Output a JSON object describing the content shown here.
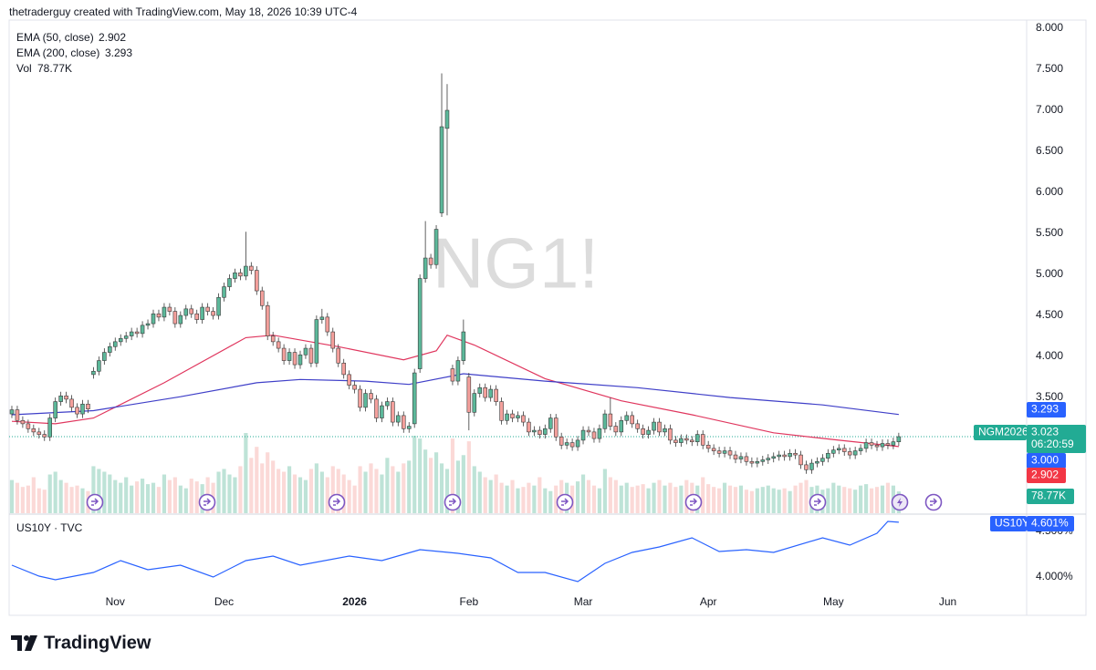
{
  "chart_data": {
    "type": "candlestick",
    "header": "thetraderguy created with TradingView.com, May 18, 2026 10:39 UTC-4",
    "title": "NG1!",
    "symbol": "NGM2026",
    "countdown": "06:20:59",
    "up_color": "#5cb89a",
    "down_color": "#f4a09c",
    "border_color": "#3a3a3a",
    "xlim": [
      -0.5,
      186
    ],
    "xticks": [
      {
        "value": 19,
        "label": "Nov"
      },
      {
        "value": 39,
        "label": "Dec"
      },
      {
        "value": 63,
        "label": "2026"
      },
      {
        "value": 84,
        "label": "Feb"
      },
      {
        "value": 105,
        "label": "Mar"
      },
      {
        "value": 128,
        "label": "Apr"
      },
      {
        "value": 151,
        "label": "May"
      },
      {
        "value": 172,
        "label": "Jun"
      }
    ],
    "ylim": [
      2.09,
      8.1
    ],
    "yticks": [
      {
        "value": 8,
        "label": "8.000"
      },
      {
        "value": 7.5,
        "label": "7.500"
      },
      {
        "value": 7,
        "label": "7.000"
      },
      {
        "value": 6.5,
        "label": "6.500"
      },
      {
        "value": 6,
        "label": "6.000"
      },
      {
        "value": 5.5,
        "label": "5.500"
      },
      {
        "value": 5,
        "label": "5.000"
      },
      {
        "value": 4.5,
        "label": "4.500"
      },
      {
        "value": 4,
        "label": "4.000"
      },
      {
        "value": 3.5,
        "label": "3.500"
      }
    ],
    "grid": false,
    "marker": {
      "value": 3,
      "label": "3.000",
      "color": "#2962ff"
    },
    "open": [
      3.3,
      3.35,
      3.22,
      3.18,
      3.12,
      3.08,
      3.05,
      3.02,
      3.25,
      3.45,
      3.52,
      3.48,
      3.38,
      3.3,
      3.42,
      3.78,
      3.82,
      3.95,
      4.05,
      4.12,
      4.18,
      4.22,
      4.25,
      4.3,
      4.28,
      4.38,
      4.4,
      4.52,
      4.48,
      4.6,
      4.55,
      4.4,
      4.5,
      4.58,
      4.52,
      4.45,
      4.6,
      4.55,
      4.5,
      4.72,
      4.85,
      4.95,
      5.02,
      4.98,
      5.1,
      5.05,
      4.8,
      4.62,
      4.25,
      4.18,
      4.1,
      3.95,
      4.05,
      3.9,
      4.02,
      4.1,
      3.92,
      4.45,
      4.48,
      4.3,
      4.1,
      3.92,
      3.78,
      3.65,
      3.6,
      3.38,
      3.55,
      3.48,
      3.25,
      3.4,
      3.45,
      3.2,
      3.28,
      3.12,
      3.18,
      3.85,
      4.95,
      5.2,
      5.12,
      5.75,
      6.78,
      3.85,
      3.7,
      3.95,
      3.75,
      3.32,
      3.55,
      3.62,
      3.5,
      3.6,
      3.45,
      3.22,
      3.3,
      3.25,
      3.28,
      3.2,
      3.08,
      3.1,
      3.05,
      3.12,
      3.25,
      3.02,
      2.92,
      2.95,
      2.9,
      2.98,
      3.1,
      3.08,
      3.0,
      3.12,
      3.3,
      3.15,
      3.08,
      3.22,
      3.28,
      3.18,
      3.12,
      3.05,
      3.1,
      3.2,
      3.08,
      3.12,
      2.98,
      2.95,
      3.0,
      2.98,
      2.96,
      3.05,
      2.92,
      2.88,
      2.85,
      2.82,
      2.85,
      2.8,
      2.75,
      2.78,
      2.72,
      2.7,
      2.72,
      2.74,
      2.76,
      2.78,
      2.8,
      2.78,
      2.82,
      2.8,
      2.68,
      2.62,
      2.7,
      2.72,
      2.76,
      2.82,
      2.86,
      2.88,
      2.84,
      2.8,
      2.85,
      2.88,
      2.95,
      2.92,
      2.9,
      2.94,
      2.92,
      2.96
    ],
    "high": [
      3.4,
      3.4,
      3.27,
      3.23,
      3.17,
      3.13,
      3.1,
      3.3,
      3.5,
      3.57,
      3.57,
      3.53,
      3.43,
      3.47,
      3.47,
      3.87,
      4.0,
      4.1,
      4.17,
      4.23,
      4.27,
      4.3,
      4.35,
      4.35,
      4.43,
      4.45,
      4.57,
      4.57,
      4.65,
      4.65,
      4.6,
      4.55,
      4.63,
      4.63,
      4.57,
      4.65,
      4.65,
      4.6,
      4.77,
      4.9,
      5.0,
      5.07,
      5.07,
      5.52,
      5.15,
      5.1,
      4.85,
      4.67,
      4.3,
      4.23,
      4.15,
      4.1,
      4.1,
      4.07,
      4.15,
      4.15,
      4.5,
      4.58,
      4.53,
      4.35,
      4.15,
      3.97,
      3.83,
      3.7,
      3.65,
      3.6,
      3.6,
      3.53,
      3.45,
      3.5,
      3.5,
      3.33,
      3.33,
      3.2,
      3.85,
      5.0,
      5.65,
      5.25,
      5.6,
      7.45,
      7.32,
      3.9,
      4.0,
      4.45,
      3.8,
      3.6,
      3.67,
      3.67,
      3.65,
      3.65,
      3.5,
      3.35,
      3.35,
      3.33,
      3.33,
      3.25,
      3.15,
      3.15,
      3.17,
      3.3,
      3.3,
      3.07,
      3.0,
      3.0,
      3.03,
      3.15,
      3.15,
      3.13,
      3.17,
      3.35,
      3.5,
      3.2,
      3.27,
      3.33,
      3.33,
      3.23,
      3.17,
      3.15,
      3.25,
      3.25,
      3.17,
      3.17,
      3.03,
      3.05,
      3.05,
      3.03,
      3.1,
      3.1,
      2.97,
      2.93,
      2.9,
      2.9,
      2.9,
      2.85,
      2.83,
      2.83,
      2.77,
      2.77,
      2.79,
      2.81,
      2.83,
      2.85,
      2.85,
      2.87,
      2.87,
      2.85,
      2.73,
      2.75,
      2.77,
      2.81,
      2.87,
      2.91,
      2.93,
      2.93,
      2.89,
      2.9,
      2.93,
      3.0,
      3.0,
      2.97,
      2.99,
      2.99,
      3.01,
      3.07
    ],
    "low": [
      3.25,
      3.17,
      3.13,
      3.07,
      3.03,
      3.0,
      2.97,
      2.97,
      3.2,
      3.4,
      3.43,
      3.33,
      3.25,
      3.25,
      3.31,
      3.73,
      3.77,
      3.9,
      4.0,
      4.07,
      4.13,
      4.17,
      4.2,
      4.23,
      4.23,
      4.33,
      4.35,
      4.43,
      4.43,
      4.5,
      4.35,
      4.35,
      4.45,
      4.47,
      4.4,
      4.4,
      4.5,
      4.45,
      4.45,
      4.67,
      4.8,
      4.9,
      4.93,
      4.93,
      5.0,
      4.75,
      4.57,
      4.2,
      4.13,
      4.05,
      3.9,
      3.9,
      3.85,
      3.85,
      3.97,
      3.87,
      3.87,
      4.4,
      4.25,
      4.05,
      3.87,
      3.73,
      3.6,
      3.55,
      3.33,
      3.33,
      3.43,
      3.2,
      3.2,
      3.35,
      3.15,
      3.15,
      3.07,
      3.07,
      3.13,
      3.8,
      4.9,
      5.07,
      5.07,
      5.7,
      5.72,
      3.65,
      3.65,
      3.9,
      3.1,
      3.27,
      3.5,
      3.45,
      3.45,
      3.4,
      3.17,
      3.17,
      3.2,
      3.2,
      3.15,
      3.03,
      3.03,
      3.0,
      3.0,
      3.07,
      2.97,
      2.87,
      2.87,
      2.85,
      2.85,
      2.93,
      3.03,
      2.95,
      2.95,
      3.07,
      3.1,
      3.03,
      3.03,
      3.17,
      3.13,
      3.07,
      3.0,
      3.0,
      3.05,
      3.03,
      3.03,
      2.93,
      2.9,
      2.9,
      2.93,
      2.91,
      2.91,
      2.87,
      2.83,
      2.8,
      2.77,
      2.77,
      2.75,
      2.7,
      2.7,
      2.67,
      2.65,
      2.65,
      2.67,
      2.69,
      2.71,
      2.73,
      2.73,
      2.73,
      2.75,
      2.63,
      2.57,
      2.57,
      2.65,
      2.67,
      2.71,
      2.77,
      2.81,
      2.79,
      2.75,
      2.75,
      2.8,
      2.83,
      2.87,
      2.85,
      2.85,
      2.87,
      2.87,
      2.91
    ],
    "close": [
      3.35,
      3.22,
      3.18,
      3.12,
      3.08,
      3.05,
      3.02,
      3.25,
      3.45,
      3.52,
      3.48,
      3.38,
      3.3,
      3.42,
      3.36,
      3.82,
      3.95,
      4.05,
      4.12,
      4.18,
      4.22,
      4.25,
      4.3,
      4.28,
      4.38,
      4.4,
      4.52,
      4.48,
      4.6,
      4.55,
      4.4,
      4.5,
      4.58,
      4.52,
      4.45,
      4.6,
      4.55,
      4.5,
      4.72,
      4.85,
      4.95,
      5.02,
      4.98,
      5.1,
      5.05,
      4.8,
      4.62,
      4.25,
      4.18,
      4.1,
      3.95,
      4.05,
      3.9,
      4.02,
      4.1,
      3.92,
      4.45,
      4.48,
      4.3,
      4.1,
      3.92,
      3.78,
      3.65,
      3.6,
      3.38,
      3.55,
      3.48,
      3.25,
      3.4,
      3.45,
      3.2,
      3.28,
      3.12,
      3.15,
      3.8,
      4.95,
      5.2,
      5.12,
      5.55,
      6.8,
      7.0,
      3.7,
      3.95,
      4.3,
      3.32,
      3.55,
      3.62,
      3.5,
      3.6,
      3.45,
      3.22,
      3.3,
      3.25,
      3.28,
      3.2,
      3.08,
      3.1,
      3.05,
      3.12,
      3.25,
      3.02,
      2.92,
      2.95,
      2.9,
      2.98,
      3.1,
      3.08,
      3.0,
      3.12,
      3.3,
      3.15,
      3.08,
      3.22,
      3.28,
      3.18,
      3.12,
      3.05,
      3.1,
      3.2,
      3.08,
      3.12,
      2.98,
      2.95,
      3.0,
      2.98,
      2.96,
      3.05,
      2.92,
      2.88,
      2.85,
      2.82,
      2.85,
      2.8,
      2.75,
      2.78,
      2.72,
      2.7,
      2.72,
      2.74,
      2.76,
      2.78,
      2.8,
      2.78,
      2.82,
      2.8,
      2.68,
      2.62,
      2.7,
      2.72,
      2.76,
      2.82,
      2.86,
      2.88,
      2.84,
      2.8,
      2.85,
      2.88,
      2.95,
      2.92,
      2.9,
      2.94,
      2.92,
      2.96,
      3.023
    ],
    "volume": {
      "name": "Vol",
      "color": "#22ab94",
      "value_label": "78.77K",
      "values": [
        120,
        110,
        95,
        100,
        130,
        90,
        85,
        140,
        150,
        120,
        110,
        95,
        100,
        90,
        80,
        170,
        160,
        150,
        140,
        120,
        110,
        130,
        100,
        115,
        125,
        105,
        110,
        95,
        140,
        120,
        130,
        100,
        90,
        125,
        115,
        105,
        130,
        110,
        150,
        160,
        140,
        130,
        170,
        290,
        200,
        240,
        180,
        220,
        190,
        160,
        150,
        170,
        140,
        130,
        120,
        160,
        180,
        150,
        130,
        170,
        160,
        140,
        120,
        100,
        170,
        150,
        180,
        160,
        140,
        200,
        170,
        150,
        180,
        190,
        280,
        270,
        230,
        200,
        220,
        180,
        160,
        270,
        190,
        210,
        260,
        170,
        150,
        130,
        120,
        140,
        110,
        100,
        120,
        90,
        95,
        110,
        100,
        130,
        90,
        80,
        100,
        120,
        110,
        100,
        115,
        140,
        120,
        100,
        90,
        160,
        130,
        120,
        100,
        110,
        95,
        100,
        105,
        90,
        110,
        120,
        100,
        110,
        95,
        100,
        120,
        110,
        100,
        130,
        105,
        95,
        90,
        110,
        100,
        95,
        100,
        85,
        80,
        90,
        95,
        100,
        90,
        85,
        90,
        80,
        100,
        110,
        120,
        95,
        100,
        85,
        90,
        110,
        100,
        95,
        90,
        85,
        100,
        105,
        90,
        95,
        100,
        110,
        100,
        78.77
      ]
    },
    "indicators": [
      {
        "name": "EMA (50, close)",
        "color": "#e0365e",
        "x": [
          0,
          8,
          15,
          28,
          43,
          48,
          60,
          72,
          78,
          80,
          85,
          98,
          112,
          125,
          140,
          152,
          163
        ],
        "values": [
          3.21,
          3.18,
          3.25,
          3.68,
          4.23,
          4.26,
          4.12,
          3.96,
          4.07,
          4.26,
          4.14,
          3.73,
          3.46,
          3.29,
          3.07,
          2.98,
          2.902
        ]
      },
      {
        "name": "EMA (200, close)",
        "color": "#3f3fc8",
        "x": [
          0,
          15,
          31,
          45,
          53,
          65,
          73,
          83,
          98,
          115,
          132,
          149,
          163
        ],
        "values": [
          3.29,
          3.34,
          3.51,
          3.68,
          3.72,
          3.7,
          3.66,
          3.79,
          3.7,
          3.62,
          3.5,
          3.41,
          3.293
        ]
      }
    ],
    "lower": {
      "type": "line",
      "title": "US10Y · TVC",
      "symbol": "US10Y",
      "color": "#2962ff",
      "value_label": "4.601%",
      "x": [
        0,
        5,
        8,
        15,
        20,
        25,
        31,
        37,
        43,
        48,
        53,
        62,
        68,
        75,
        82,
        88,
        93,
        98,
        104,
        109,
        114,
        119,
        125,
        130,
        135,
        140,
        149,
        154,
        159,
        161,
        163
      ],
      "values": [
        4.13,
        4.01,
        3.97,
        4.05,
        4.18,
        4.08,
        4.13,
        4.0,
        4.18,
        4.23,
        4.13,
        4.23,
        4.18,
        4.3,
        4.26,
        4.21,
        4.05,
        4.05,
        3.95,
        4.15,
        4.27,
        4.33,
        4.43,
        4.28,
        4.3,
        4.27,
        4.43,
        4.35,
        4.48,
        4.61,
        4.601
      ],
      "ylim": [
        3.58,
        4.68
      ],
      "yticks": [
        {
          "value": 4.5,
          "label": "4.500%"
        },
        {
          "value": 4,
          "label": "4.000%"
        }
      ]
    },
    "footer": "TradingView"
  }
}
